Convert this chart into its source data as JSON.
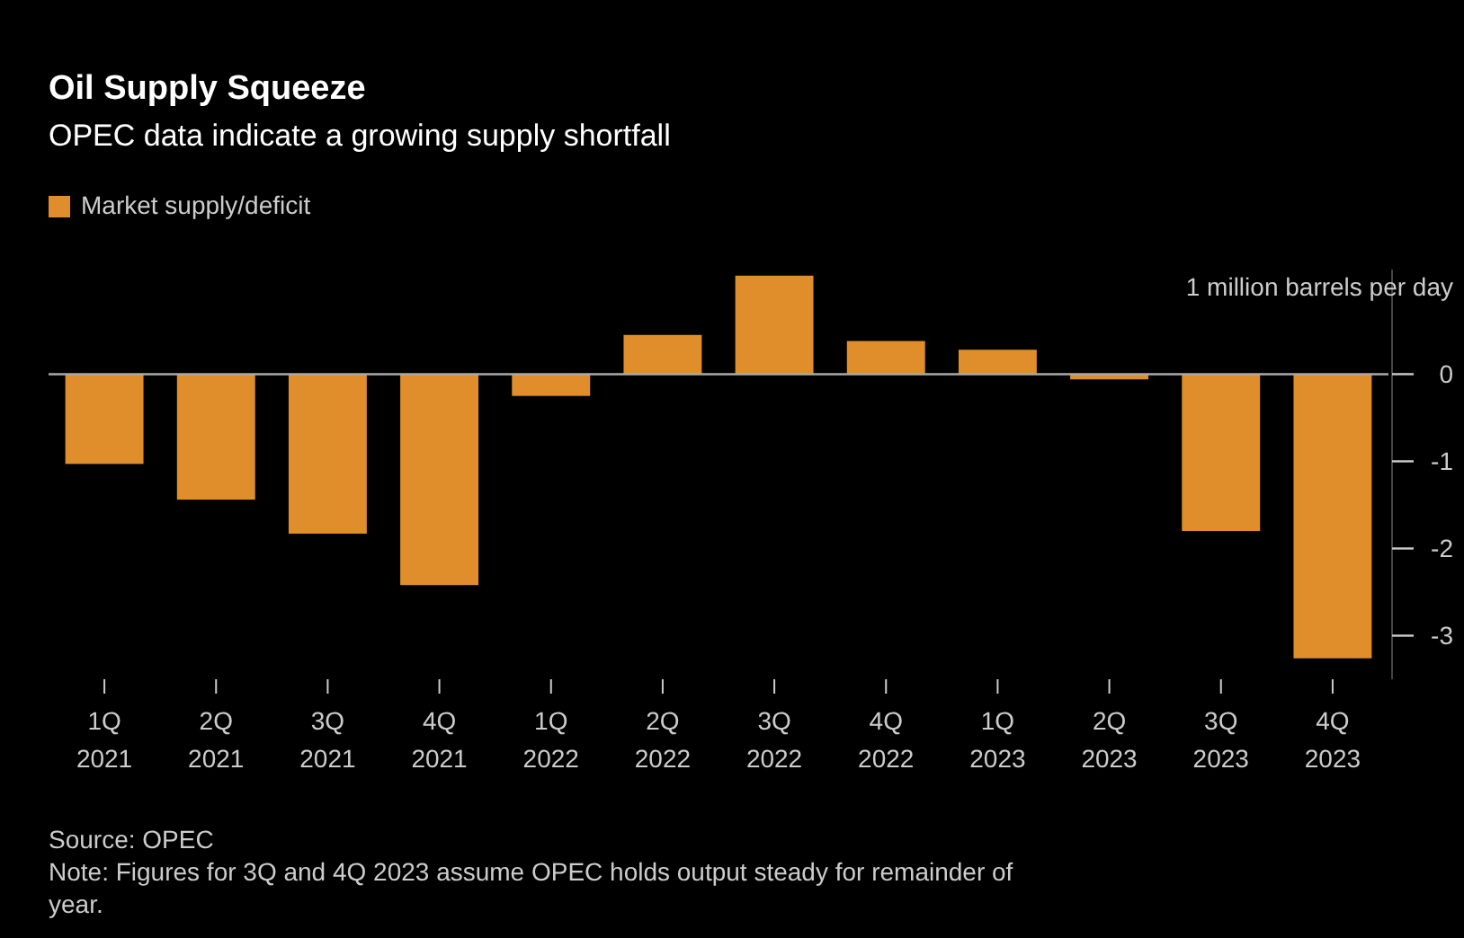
{
  "chart_data": {
    "type": "bar",
    "title": "Oil Supply Squeeze",
    "subtitle": "OPEC data indicate a growing supply shortfall",
    "categories": [
      "1Q 2021",
      "2Q 2021",
      "3Q 2021",
      "4Q 2021",
      "1Q 2022",
      "2Q 2022",
      "3Q 2022",
      "4Q 2022",
      "1Q 2023",
      "2Q 2023",
      "3Q 2023",
      "4Q 2023"
    ],
    "series": [
      {
        "name": "Market supply/deficit",
        "color": "#e08e2b",
        "values": [
          -1.03,
          -1.44,
          -1.83,
          -2.42,
          -0.25,
          0.45,
          1.13,
          0.38,
          0.28,
          -0.06,
          -1.8,
          -3.26
        ]
      }
    ],
    "ylim": [
      -3.5,
      1.2
    ],
    "yticks": [
      {
        "value": 1,
        "label": "1 million barrels per day"
      },
      0,
      -1,
      -2,
      -3
    ],
    "legend": "top left",
    "grid": false,
    "ref_lines": [
      {
        "axis": "y",
        "value": 0,
        "color": "#aaaaaa"
      }
    ],
    "annotations": [
      "Source: OPEC",
      "Note: Figures for 3Q and 4Q 2023 assume OPEC holds output steady for remainder of year."
    ]
  }
}
